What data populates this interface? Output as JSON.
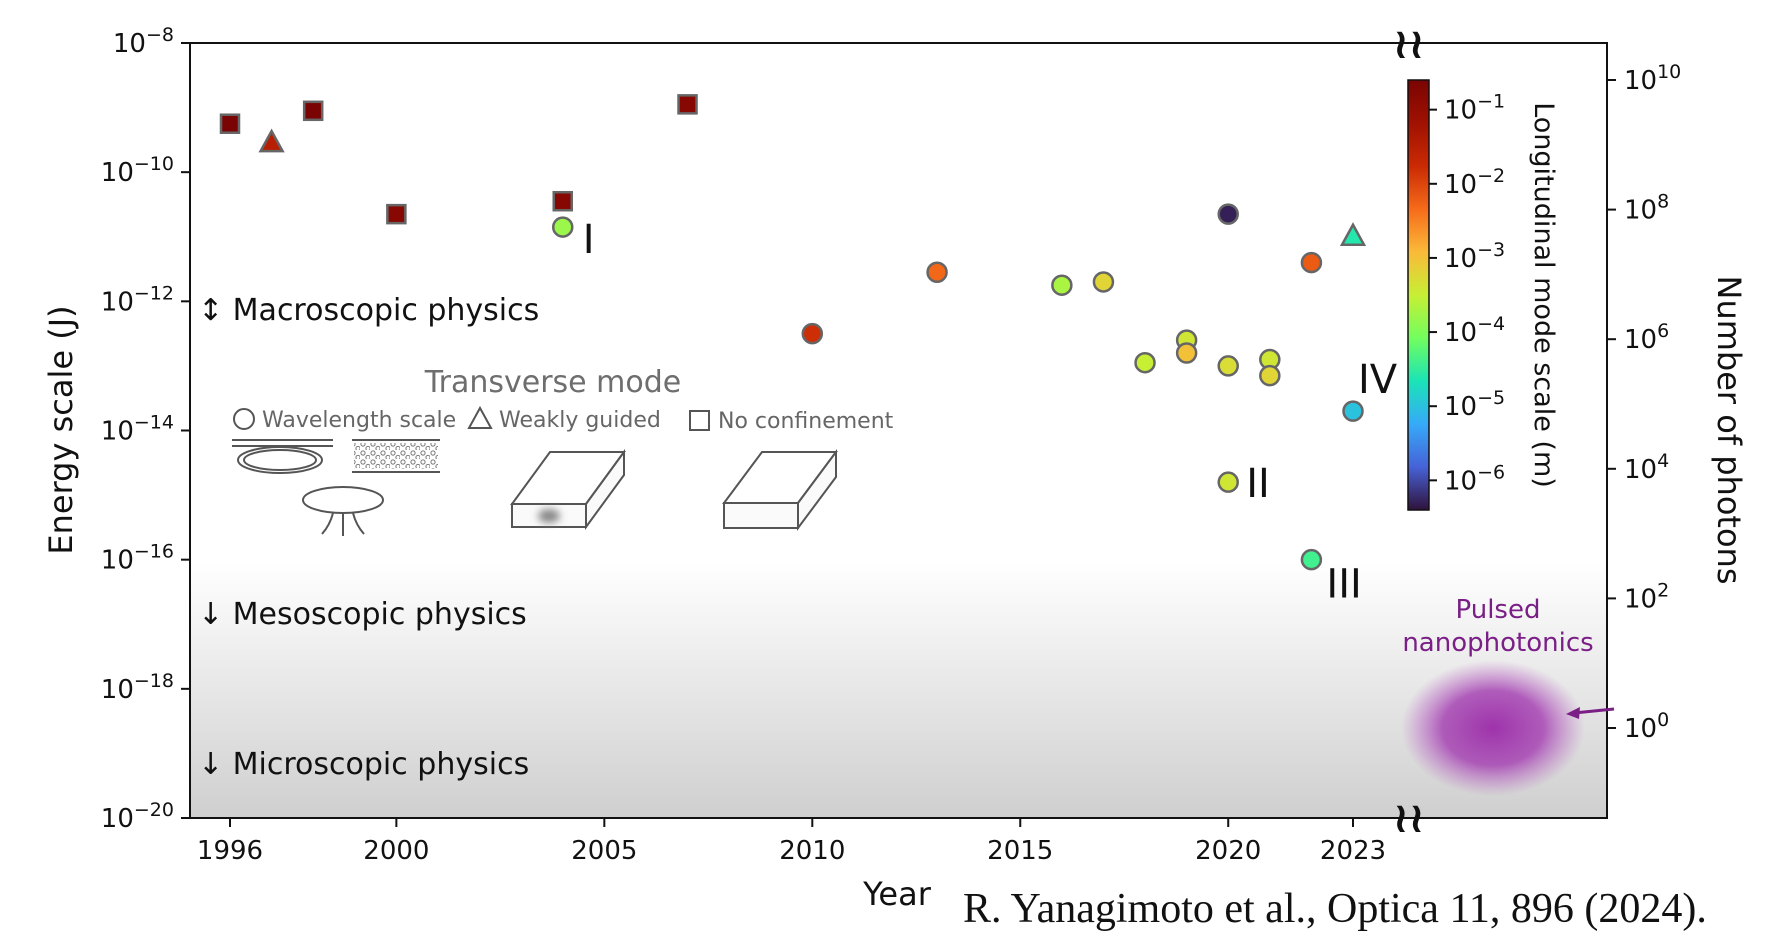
{
  "chart_data": {
    "type": "scatter",
    "title": "",
    "xlabel": "Year",
    "ylabel": "Energy scale (J)",
    "ylabel_right": "Number of photons",
    "colorbar_label": "Longitudinal mode scale (m)",
    "x_ticks": [
      1996,
      2000,
      2005,
      2010,
      2015,
      2020,
      2023
    ],
    "xlim": [
      1995,
      2024
    ],
    "ylim_exp": [
      -20,
      -8
    ],
    "y_ticks_exp": [
      -8,
      -10,
      -12,
      -14,
      -16,
      -18,
      -20
    ],
    "y2_ticks_exp": [
      10,
      8,
      6,
      4,
      2,
      0
    ],
    "colorbar_ticks_exp": [
      -1,
      -2,
      -3,
      -4,
      -5,
      -6
    ],
    "colorbar_range_exp": [
      -6.4,
      -0.6
    ],
    "marker_legend": {
      "title": "Transverse mode",
      "circle": "Wavelength scale",
      "triangle": "Weakly guided",
      "square": "No confinement"
    },
    "regimes": {
      "macro": "↕  Macroscopic physics",
      "meso": "↓  Mesoscopic physics",
      "micro": "↓  Microscopic physics"
    },
    "annotations": {
      "I": "I",
      "II": "II",
      "III": "III",
      "IV": "IV"
    },
    "pulsed_label_1": "Pulsed",
    "pulsed_label_2": "nanophotonics",
    "points": [
      {
        "x": 1996,
        "y_exp": -9.25,
        "c_exp": -0.6,
        "shape": "square"
      },
      {
        "x": 1998,
        "y_exp": -9.05,
        "c_exp": -0.6,
        "shape": "square"
      },
      {
        "x": 1997,
        "y_exp": -9.55,
        "c_exp": -1.5,
        "shape": "triangle"
      },
      {
        "x": 2000,
        "y_exp": -10.65,
        "c_exp": -0.8,
        "shape": "square"
      },
      {
        "x": 2004,
        "y_exp": -10.45,
        "c_exp": -0.8,
        "shape": "square"
      },
      {
        "x": 2007,
        "y_exp": -8.95,
        "c_exp": -0.8,
        "shape": "square"
      },
      {
        "x": 2004,
        "y_exp": -10.85,
        "c_exp": -3.8,
        "shape": "circle",
        "label": "I"
      },
      {
        "x": 2010,
        "y_exp": -12.5,
        "c_exp": -1.8,
        "shape": "circle"
      },
      {
        "x": 2013,
        "y_exp": -11.55,
        "c_exp": -2.3,
        "shape": "circle"
      },
      {
        "x": 2016,
        "y_exp": -11.75,
        "c_exp": -3.7,
        "shape": "circle"
      },
      {
        "x": 2017,
        "y_exp": -11.7,
        "c_exp": -3.2,
        "shape": "circle"
      },
      {
        "x": 2018,
        "y_exp": -12.95,
        "c_exp": -3.5,
        "shape": "circle"
      },
      {
        "x": 2019,
        "y_exp": -12.6,
        "c_exp": -3.4,
        "shape": "circle"
      },
      {
        "x": 2019,
        "y_exp": -12.8,
        "c_exp": -3.0,
        "shape": "circle"
      },
      {
        "x": 2020,
        "y_exp": -10.65,
        "c_exp": -6.3,
        "shape": "circle"
      },
      {
        "x": 2020,
        "y_exp": -13.0,
        "c_exp": -3.3,
        "shape": "circle"
      },
      {
        "x": 2020,
        "y_exp": -14.8,
        "c_exp": -3.4,
        "shape": "circle",
        "label": "II"
      },
      {
        "x": 2021,
        "y_exp": -12.9,
        "c_exp": -3.4,
        "shape": "circle"
      },
      {
        "x": 2021,
        "y_exp": -13.15,
        "c_exp": -3.2,
        "shape": "circle"
      },
      {
        "x": 2022,
        "y_exp": -11.4,
        "c_exp": -2.2,
        "shape": "circle"
      },
      {
        "x": 2022,
        "y_exp": -16.0,
        "c_exp": -4.4,
        "shape": "circle",
        "label": "III"
      },
      {
        "x": 2023,
        "y_exp": -13.7,
        "c_exp": -5.0,
        "shape": "circle",
        "label": "IV"
      },
      {
        "x": 2023,
        "y_exp": -11.0,
        "c_exp": -4.6,
        "shape": "triangle"
      }
    ]
  },
  "citation": "R. Yanagimoto et al., Optica 11, 896 (2024)."
}
